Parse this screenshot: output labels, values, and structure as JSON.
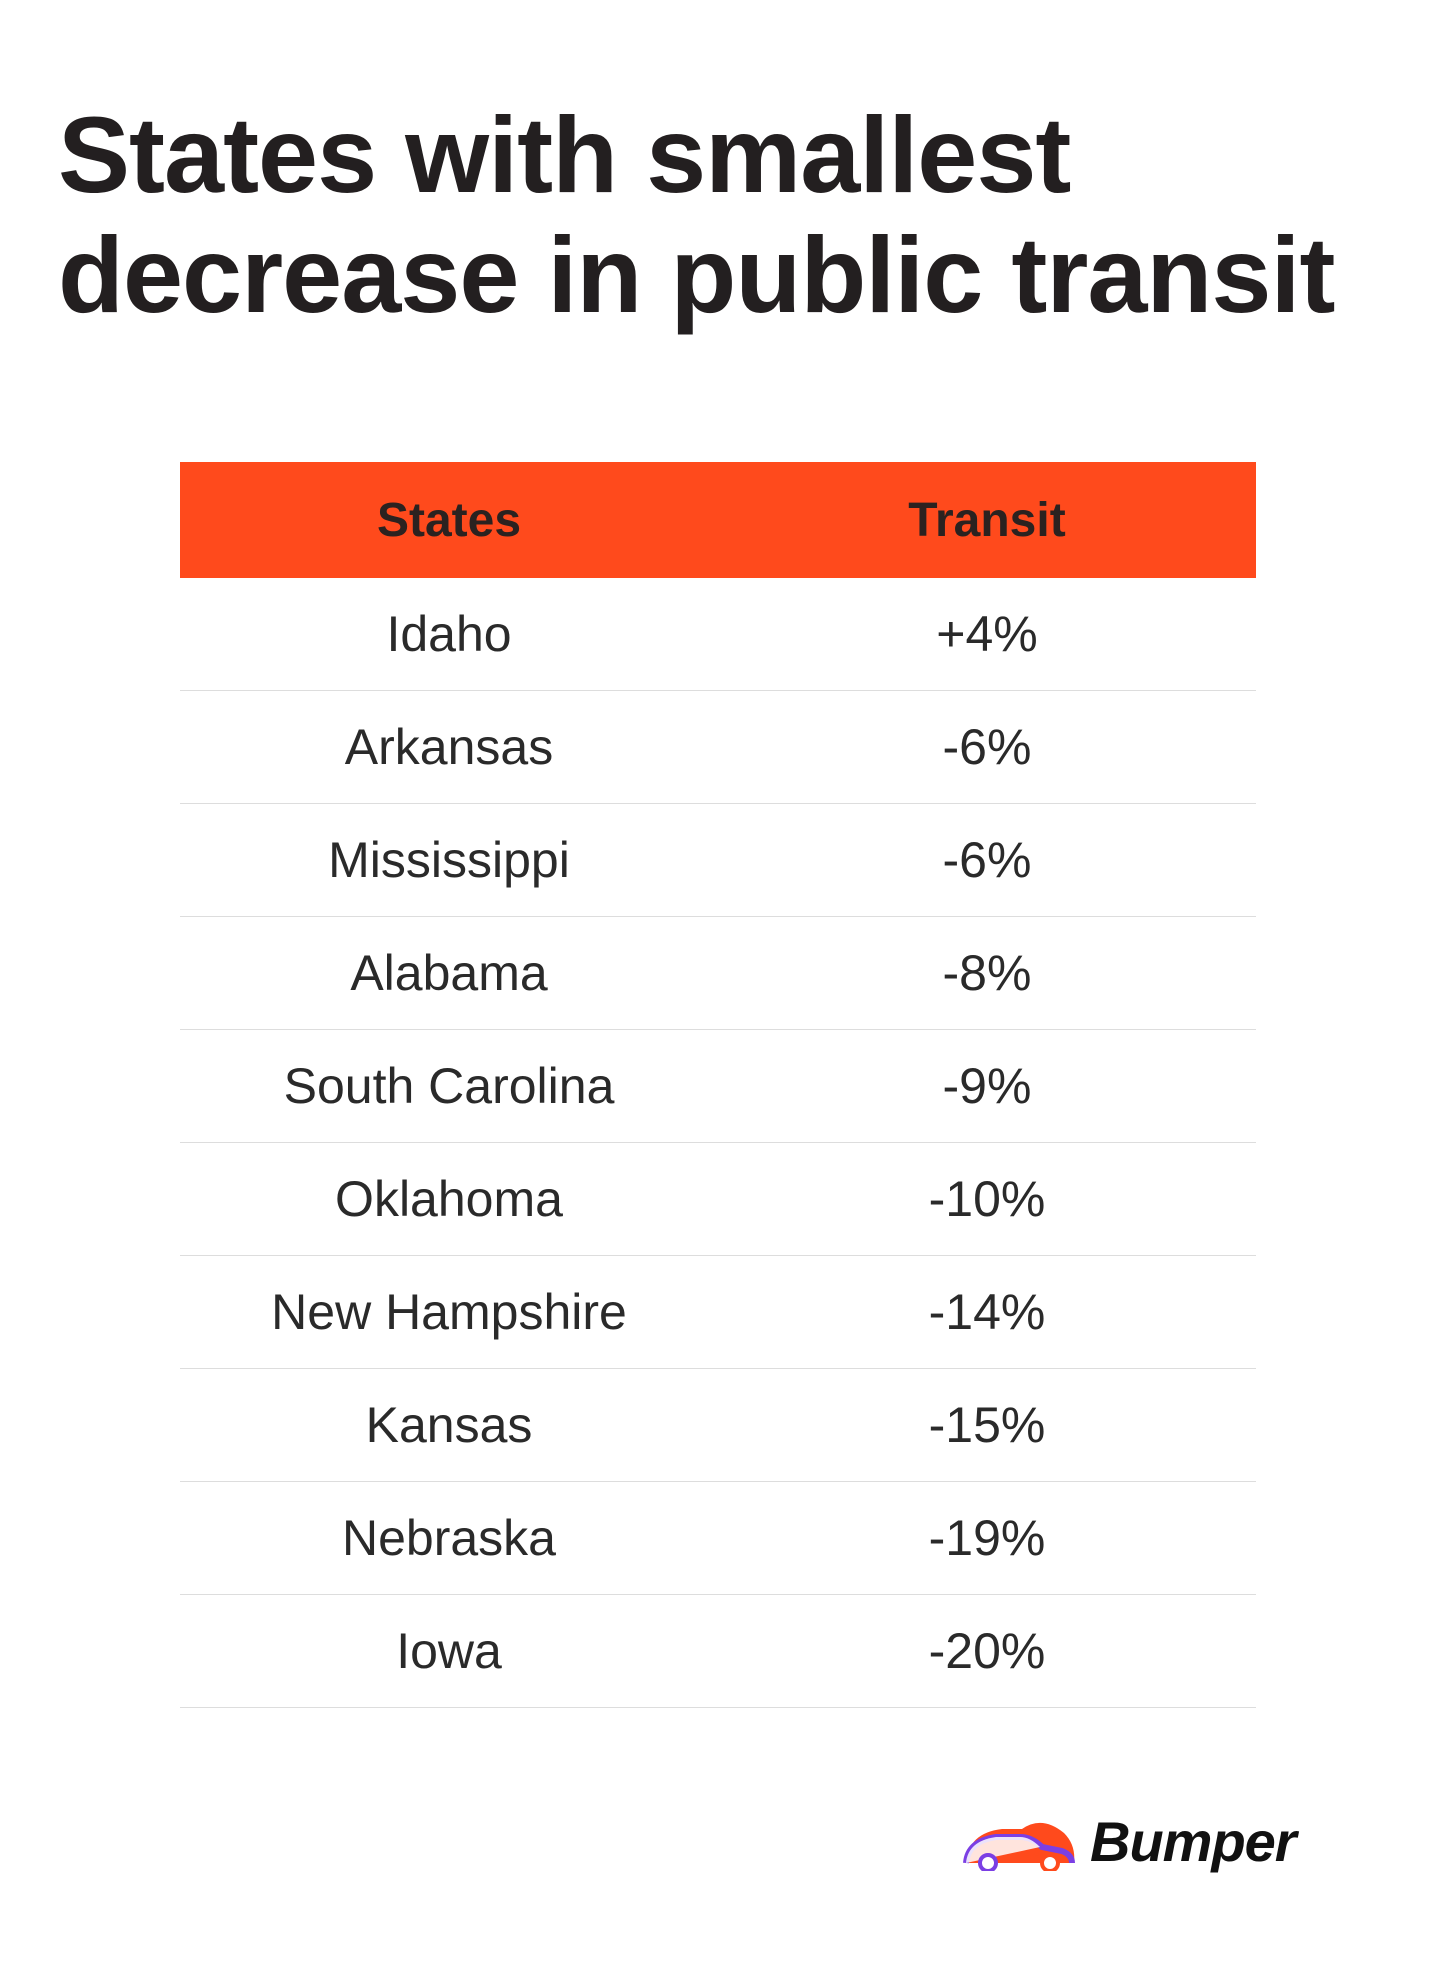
{
  "header": {
    "title": "States with smallest decrease in public transit"
  },
  "table": {
    "columns": [
      "States",
      "Transit"
    ],
    "rows": [
      [
        "Idaho",
        "+4%"
      ],
      [
        "Arkansas",
        "-6%"
      ],
      [
        "Mississippi",
        "-6%"
      ],
      [
        "Alabama",
        "-8%"
      ],
      [
        "South Carolina",
        "-9%"
      ],
      [
        "Oklahoma",
        "-10%"
      ],
      [
        "New Hampshire",
        "-14%"
      ],
      [
        "Kansas",
        "-15%"
      ],
      [
        "Nebraska",
        "-19%"
      ],
      [
        "Iowa",
        "-20%"
      ]
    ]
  },
  "footer": {
    "brand": "Bumper"
  }
}
